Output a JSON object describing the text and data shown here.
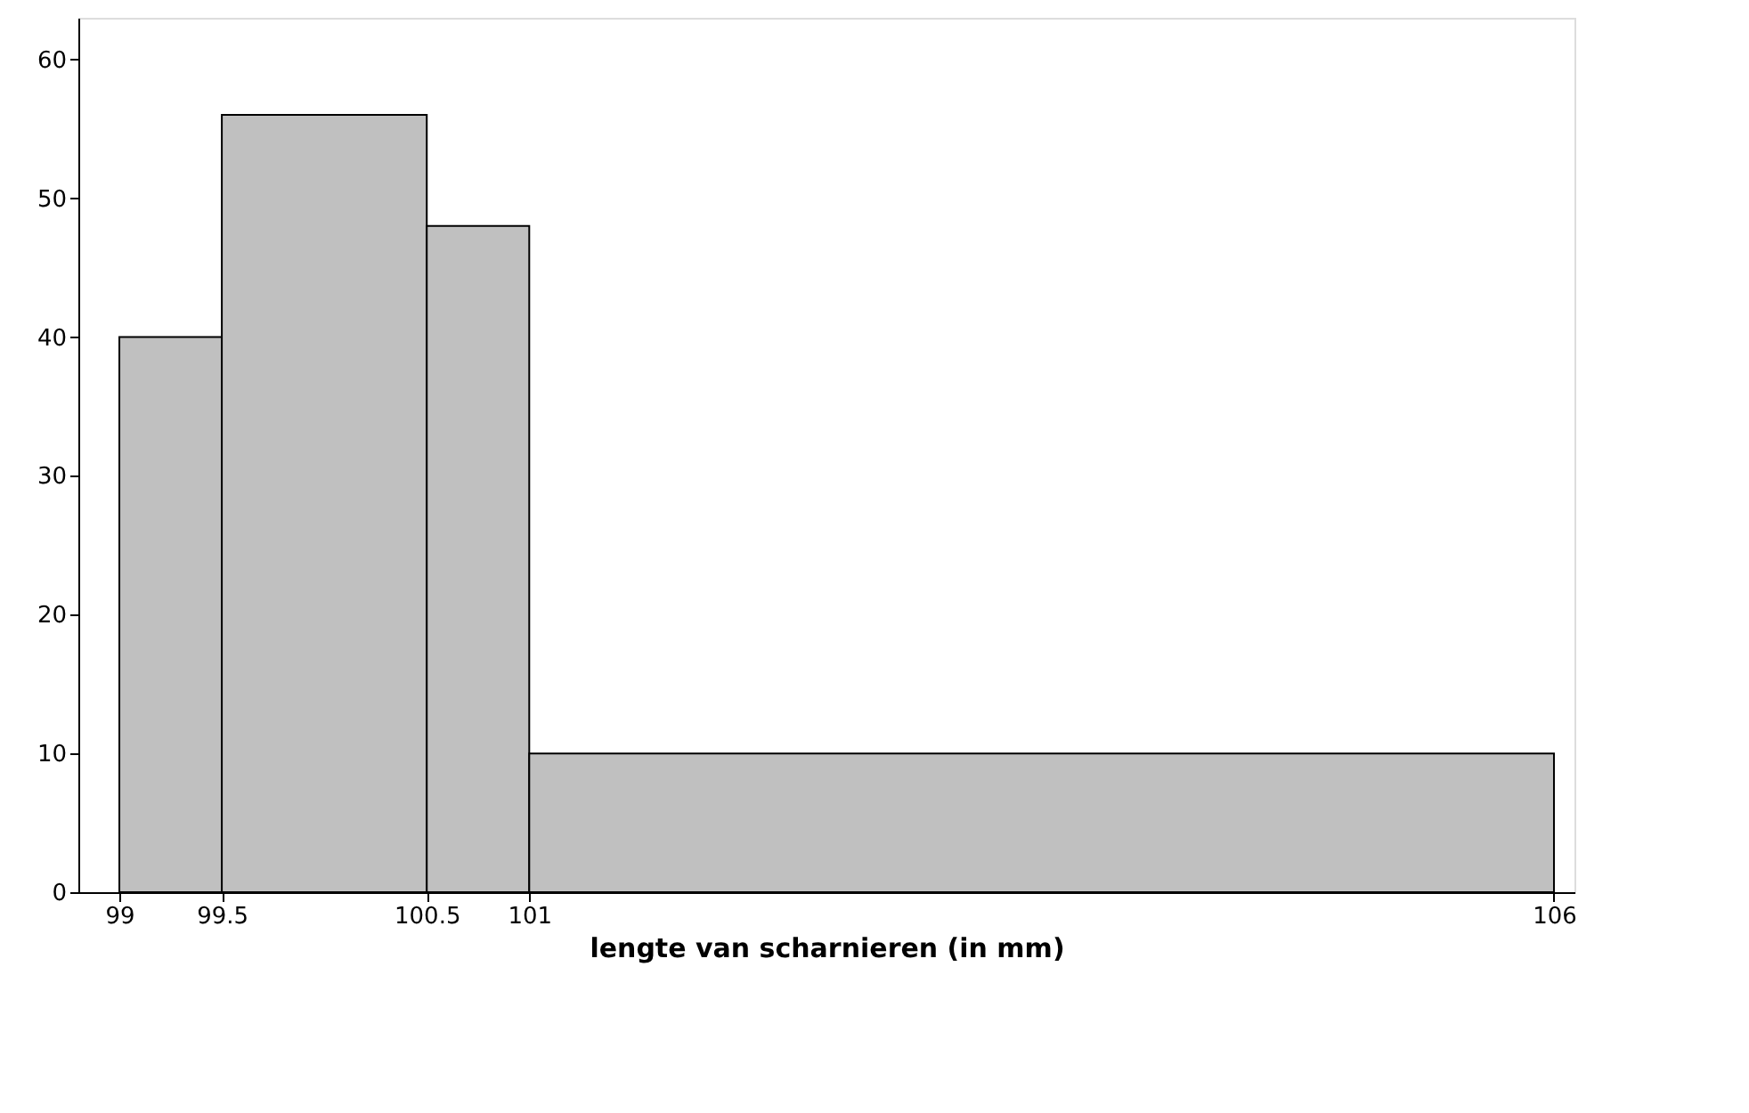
{
  "chart_data": {
    "type": "histogram",
    "xlabel": "lengte van scharnieren (in mm)",
    "bins": [
      99,
      99.5,
      100.5,
      101,
      106
    ],
    "values": [
      40,
      56,
      48,
      10
    ],
    "color": "#c0c0c0",
    "xlim": [
      98.8,
      106.1
    ],
    "xticks": [
      99,
      99.5,
      100.5,
      101,
      106
    ],
    "ylim": [
      0,
      63
    ],
    "yticks": [
      0,
      10,
      20,
      30,
      40,
      50,
      60
    ],
    "grid": false
  }
}
